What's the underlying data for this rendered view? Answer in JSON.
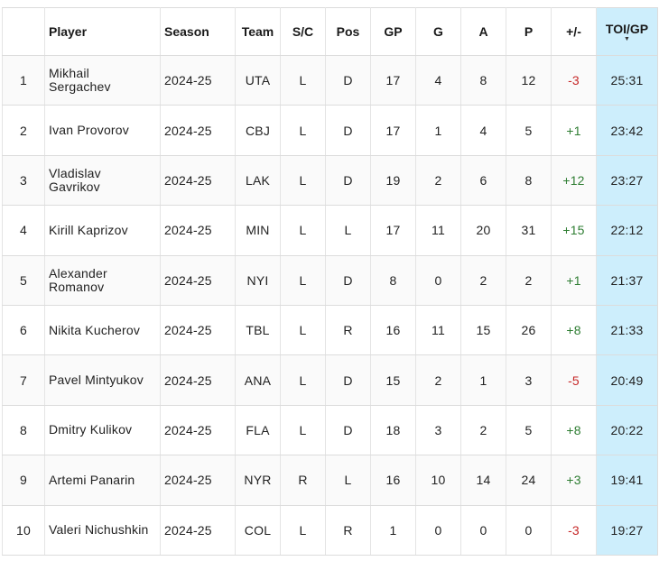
{
  "columns": {
    "player": "Player",
    "season": "Season",
    "team": "Team",
    "sc": "S/C",
    "pos": "Pos",
    "gp": "GP",
    "g": "G",
    "a": "A",
    "p": "P",
    "pm": "+/-",
    "toi": "TOI/GP"
  },
  "sort": {
    "column": "TOI/GP",
    "indicator": "sort-desc-icon"
  },
  "colors": {
    "sorted_column_bg": "#cdeefc",
    "positive": "#2e7d32",
    "negative": "#c62828"
  },
  "rows": [
    {
      "rank": "1",
      "player_first": "Mikhail",
      "player_last": "Sergachev",
      "season": "2024-25",
      "team": "UTA",
      "sc": "L",
      "pos": "D",
      "gp": "17",
      "g": "4",
      "a": "8",
      "p": "12",
      "pm": "-3",
      "toi": "25:31"
    },
    {
      "rank": "2",
      "player_first": "Ivan Provorov",
      "player_last": "",
      "season": "2024-25",
      "team": "CBJ",
      "sc": "L",
      "pos": "D",
      "gp": "17",
      "g": "1",
      "a": "4",
      "p": "5",
      "pm": "+1",
      "toi": "23:42"
    },
    {
      "rank": "3",
      "player_first": "Vladislav",
      "player_last": "Gavrikov",
      "season": "2024-25",
      "team": "LAK",
      "sc": "L",
      "pos": "D",
      "gp": "19",
      "g": "2",
      "a": "6",
      "p": "8",
      "pm": "+12",
      "toi": "23:27"
    },
    {
      "rank": "4",
      "player_first": "Kirill Kaprizov",
      "player_last": "",
      "season": "2024-25",
      "team": "MIN",
      "sc": "L",
      "pos": "L",
      "gp": "17",
      "g": "11",
      "a": "20",
      "p": "31",
      "pm": "+15",
      "toi": "22:12"
    },
    {
      "rank": "5",
      "player_first": "Alexander",
      "player_last": "Romanov",
      "season": "2024-25",
      "team": "NYI",
      "sc": "L",
      "pos": "D",
      "gp": "8",
      "g": "0",
      "a": "2",
      "p": "2",
      "pm": "+1",
      "toi": "21:37"
    },
    {
      "rank": "6",
      "player_first": "Nikita Kucherov",
      "player_last": "",
      "season": "2024-25",
      "team": "TBL",
      "sc": "L",
      "pos": "R",
      "gp": "16",
      "g": "11",
      "a": "15",
      "p": "26",
      "pm": "+8",
      "toi": "21:33"
    },
    {
      "rank": "7",
      "player_first": "Pavel Mintyukov",
      "player_last": "",
      "season": "2024-25",
      "team": "ANA",
      "sc": "L",
      "pos": "D",
      "gp": "15",
      "g": "2",
      "a": "1",
      "p": "3",
      "pm": "-5",
      "toi": "20:49"
    },
    {
      "rank": "8",
      "player_first": "Dmitry Kulikov",
      "player_last": "",
      "season": "2024-25",
      "team": "FLA",
      "sc": "L",
      "pos": "D",
      "gp": "18",
      "g": "3",
      "a": "2",
      "p": "5",
      "pm": "+8",
      "toi": "20:22"
    },
    {
      "rank": "9",
      "player_first": "Artemi Panarin",
      "player_last": "",
      "season": "2024-25",
      "team": "NYR",
      "sc": "R",
      "pos": "L",
      "gp": "16",
      "g": "10",
      "a": "14",
      "p": "24",
      "pm": "+3",
      "toi": "19:41"
    },
    {
      "rank": "10",
      "player_first": "Valeri Nichushkin",
      "player_last": "",
      "season": "2024-25",
      "team": "COL",
      "sc": "L",
      "pos": "R",
      "gp": "1",
      "g": "0",
      "a": "0",
      "p": "0",
      "pm": "-3",
      "toi": "19:27"
    }
  ]
}
